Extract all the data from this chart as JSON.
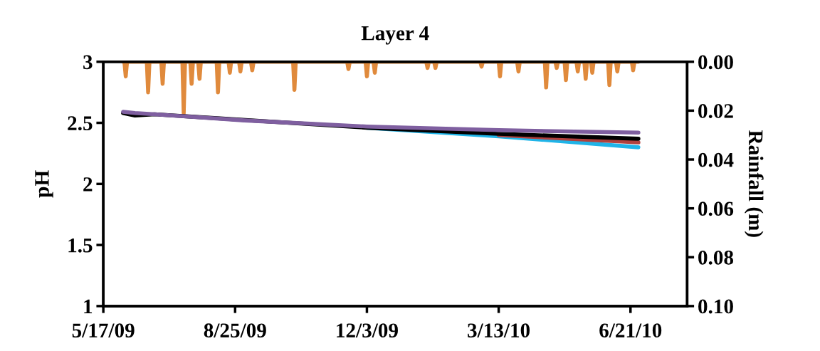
{
  "chart_data": {
    "type": "line",
    "title": "Layer 4",
    "ylabel": "pH",
    "y2label": "Rainfall (m)",
    "xlim": [
      "2009-05-17",
      "2010-08-03"
    ],
    "xticks": [
      {
        "value": "2009-05-17",
        "label": "5/17/09"
      },
      {
        "value": "2009-08-25",
        "label": "8/25/09"
      },
      {
        "value": "2009-12-03",
        "label": "12/3/09"
      },
      {
        "value": "2010-03-13",
        "label": "3/13/10"
      },
      {
        "value": "2010-06-21",
        "label": "6/21/10"
      }
    ],
    "ylim": [
      1,
      3
    ],
    "yticks": [
      1,
      1.5,
      2,
      2.5,
      3
    ],
    "y2lim": [
      0.1,
      0
    ],
    "y2ticks": [
      {
        "value": 0,
        "label": "0.00"
      },
      {
        "value": 0.02,
        "label": "0.02"
      },
      {
        "value": 0.04,
        "label": "0.04"
      },
      {
        "value": 0.06,
        "label": "0.06"
      },
      {
        "value": 0.08,
        "label": "0.08"
      },
      {
        "value": 0.1,
        "label": "0.10"
      }
    ],
    "grid": false,
    "series": [
      {
        "type": "line",
        "axis": "y2",
        "color": "#e08a3c",
        "x": [
          "2009-06-01",
          "2009-06-02",
          "2009-06-03",
          "2009-06-04",
          "2009-06-19",
          "2009-06-20",
          "2009-06-21",
          "2009-06-30",
          "2009-07-01",
          "2009-07-02",
          "2009-07-16",
          "2009-07-17",
          "2009-07-18",
          "2009-07-22",
          "2009-07-23",
          "2009-07-24",
          "2009-07-28",
          "2009-07-29",
          "2009-07-30",
          "2009-08-11",
          "2009-08-12",
          "2009-08-13",
          "2009-08-20",
          "2009-08-21",
          "2009-08-22",
          "2009-08-28",
          "2009-08-29",
          "2009-08-30",
          "2009-09-06",
          "2009-09-07",
          "2009-09-08",
          "2009-10-08",
          "2009-10-09",
          "2009-10-10",
          "2009-11-18",
          "2009-11-19",
          "2009-11-20",
          "2009-12-02",
          "2009-12-03",
          "2009-12-04",
          "2009-12-08",
          "2009-12-09",
          "2009-12-10",
          "2010-01-17",
          "2010-01-18",
          "2010-01-19",
          "2010-01-23",
          "2010-01-24",
          "2010-01-25",
          "2010-02-27",
          "2010-02-28",
          "2010-03-01",
          "2010-03-13",
          "2010-03-14",
          "2010-03-15",
          "2010-03-27",
          "2010-03-28",
          "2010-03-29",
          "2010-04-17",
          "2010-04-18",
          "2010-04-19",
          "2010-04-25",
          "2010-04-26",
          "2010-04-27",
          "2010-05-02",
          "2010-05-03",
          "2010-05-04",
          "2010-05-11",
          "2010-05-12",
          "2010-05-13",
          "2010-05-17",
          "2010-05-18",
          "2010-05-19",
          "2010-05-22",
          "2010-05-23",
          "2010-05-24",
          "2010-06-04",
          "2010-06-05",
          "2010-06-06",
          "2010-06-10",
          "2010-06-11",
          "2010-06-12",
          "2010-06-22",
          "2010-06-23",
          "2010-06-24",
          "2010-06-27"
        ],
        "values": [
          0,
          0,
          0.006,
          0,
          0,
          0.0125,
          0,
          0,
          0.009,
          0,
          0,
          0.021,
          0,
          0,
          0.009,
          0,
          0,
          0.007,
          0,
          0,
          0.0125,
          0,
          0,
          0.0045,
          0,
          0,
          0.004,
          0,
          0,
          0.0035,
          0,
          0,
          0.0115,
          0,
          0,
          0.003,
          0,
          0,
          0.006,
          0,
          0,
          0.0045,
          0,
          0,
          0.0025,
          0,
          0,
          0.0025,
          0,
          0,
          0.002,
          0,
          0,
          0.006,
          0,
          0,
          0.004,
          0,
          0,
          0.0105,
          0,
          0,
          0.0025,
          0,
          0,
          0.0075,
          0,
          0,
          0.004,
          0,
          0,
          0.007,
          0,
          0,
          0.0045,
          0,
          0,
          0.0095,
          0,
          0,
          0.004,
          0,
          0,
          0.0035,
          0,
          0
        ]
      },
      {
        "axis": "y",
        "color": "#1fb4e8",
        "x": [
          "2009-12-03",
          "2010-03-13",
          "2010-06-27"
        ],
        "values": [
          2.46,
          2.39,
          2.3
        ]
      },
      {
        "axis": "y",
        "color": "#b0413e",
        "x": [
          "2010-03-13",
          "2010-06-27"
        ],
        "values": [
          2.4,
          2.34
        ]
      },
      {
        "axis": "y",
        "color": "#000000",
        "x": [
          "2009-06-01",
          "2009-06-10",
          "2009-06-25",
          "2009-12-03",
          "2010-03-13",
          "2010-06-27"
        ],
        "values": [
          2.58,
          2.56,
          2.57,
          2.46,
          2.41,
          2.37
        ]
      },
      {
        "axis": "y",
        "color": "#7f5fa0",
        "x": [
          "2009-06-01",
          "2009-06-10",
          "2009-06-25",
          "2009-09-01",
          "2009-12-03",
          "2010-03-13",
          "2010-06-27"
        ],
        "values": [
          2.59,
          2.58,
          2.57,
          2.52,
          2.47,
          2.44,
          2.42
        ]
      }
    ]
  }
}
